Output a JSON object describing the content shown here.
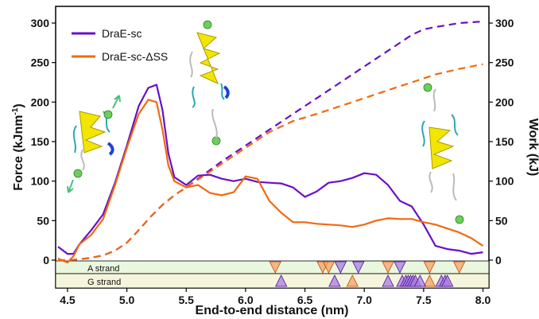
{
  "chart_data": {
    "type": "line",
    "xlabel": "End-to-end distance (nm)",
    "ylabel_left": "Force (kJnm",
    "ylabel_left_sup": "-1",
    "ylabel_left_end": ")",
    "ylabel_right": "Work (kJ)",
    "xlim": [
      4.4,
      8.05
    ],
    "ylim": [
      0,
      320
    ],
    "x_ticks": [
      "4.5",
      "5.0",
      "5.5",
      "6.0",
      "6.5",
      "7.0",
      "7.5",
      "8.0"
    ],
    "x_tick_values": [
      4.5,
      5.0,
      5.5,
      6.0,
      6.5,
      7.0,
      7.5,
      8.0
    ],
    "y_ticks": [
      "0",
      "50",
      "100",
      "150",
      "200",
      "250",
      "300"
    ],
    "y_tick_values": [
      0,
      50,
      100,
      150,
      200,
      250,
      300
    ],
    "legend_position": "top-left",
    "series": [
      {
        "name": "DraE-sc",
        "kind": "force",
        "color": "#6a0fc7",
        "x": [
          4.42,
          4.5,
          4.55,
          4.6,
          4.7,
          4.8,
          4.9,
          5.0,
          5.1,
          5.18,
          5.25,
          5.3,
          5.35,
          5.4,
          5.5,
          5.6,
          5.7,
          5.8,
          5.9,
          6.0,
          6.1,
          6.2,
          6.3,
          6.4,
          6.5,
          6.6,
          6.7,
          6.8,
          6.9,
          7.0,
          7.1,
          7.2,
          7.3,
          7.4,
          7.5,
          7.6,
          7.7,
          7.8,
          7.9,
          8.0
        ],
        "y": [
          17,
          8,
          8,
          20,
          38,
          58,
          98,
          145,
          195,
          218,
          222,
          190,
          135,
          105,
          95,
          107,
          108,
          103,
          100,
          103,
          99,
          98,
          97,
          92,
          80,
          87,
          98,
          100,
          104,
          110,
          108,
          95,
          75,
          68,
          45,
          18,
          14,
          12,
          8,
          10
        ]
      },
      {
        "name": "DraE-sc-ΔSS",
        "kind": "force",
        "color": "#f06a0f",
        "x": [
          4.42,
          4.5,
          4.55,
          4.6,
          4.7,
          4.8,
          4.9,
          5.0,
          5.1,
          5.18,
          5.25,
          5.3,
          5.35,
          5.4,
          5.5,
          5.6,
          5.7,
          5.8,
          5.9,
          6.0,
          6.1,
          6.2,
          6.3,
          6.4,
          6.5,
          6.6,
          6.7,
          6.8,
          6.9,
          7.0,
          7.1,
          7.2,
          7.3,
          7.4,
          7.5,
          7.6,
          7.7,
          7.8,
          7.9,
          8.0
        ],
        "y": [
          2,
          -3,
          5,
          20,
          32,
          52,
          95,
          142,
          185,
          203,
          200,
          165,
          120,
          100,
          92,
          95,
          85,
          82,
          86,
          106,
          103,
          75,
          60,
          48,
          48,
          46,
          45,
          44,
          42,
          45,
          50,
          53,
          52,
          52,
          48,
          45,
          40,
          35,
          28,
          18
        ]
      },
      {
        "name": "DraE-sc work",
        "kind": "work",
        "color": "#6a0fc7",
        "x": [
          4.42,
          4.5,
          4.6,
          4.7,
          4.8,
          4.9,
          5.0,
          5.1,
          5.2,
          5.3,
          5.4,
          5.5,
          5.6,
          5.8,
          6.0,
          6.2,
          6.4,
          6.6,
          6.8,
          7.0,
          7.2,
          7.4,
          7.5,
          7.6,
          7.8,
          8.0
        ],
        "y": [
          0,
          0,
          1,
          3,
          6,
          12,
          22,
          38,
          55,
          70,
          82,
          92,
          103,
          125,
          145,
          165,
          185,
          205,
          225,
          245,
          265,
          285,
          292,
          295,
          300,
          302
        ]
      },
      {
        "name": "DraE-sc-ΔSS work",
        "kind": "work",
        "color": "#f06a0f",
        "x": [
          4.42,
          4.5,
          4.6,
          4.7,
          4.8,
          4.9,
          5.0,
          5.1,
          5.2,
          5.3,
          5.4,
          5.5,
          5.6,
          5.8,
          6.0,
          6.2,
          6.4,
          6.6,
          6.8,
          7.0,
          7.2,
          7.4,
          7.6,
          7.8,
          8.0
        ],
        "y": [
          0,
          0,
          1,
          3,
          6,
          12,
          22,
          38,
          55,
          70,
          82,
          92,
          102,
          122,
          142,
          162,
          176,
          185,
          195,
          205,
          215,
          225,
          235,
          242,
          248
        ]
      }
    ],
    "strand_tracks": [
      {
        "label": "A strand",
        "orange_markers": [
          6.25,
          6.65,
          6.7,
          7.2,
          7.55,
          7.8
        ],
        "purple_markers": [
          6.8,
          6.95,
          7.3
        ]
      },
      {
        "label": "G strand",
        "orange_markers": [
          6.9,
          7.55
        ],
        "purple_markers": [
          6.3,
          6.75,
          7.2,
          7.32,
          7.35,
          7.37,
          7.39,
          7.41,
          7.43,
          7.47,
          7.65,
          7.68,
          7.7
        ]
      }
    ]
  }
}
